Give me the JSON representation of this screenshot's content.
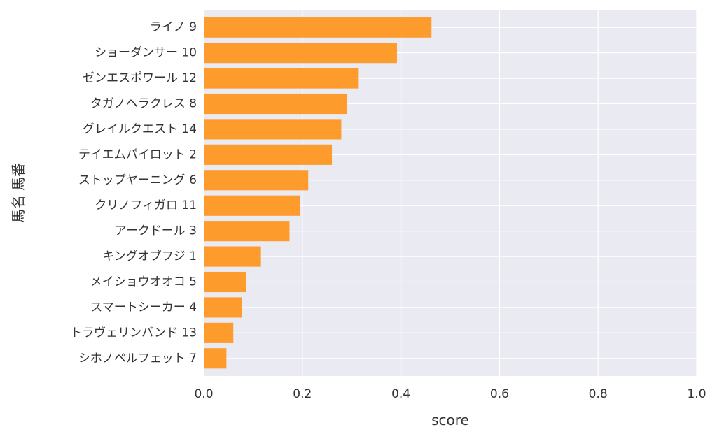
{
  "chart_data": {
    "type": "bar",
    "orientation": "horizontal",
    "categories": [
      "ライノ 9",
      "ショーダンサー 10",
      "ゼンエスポワール 12",
      "タガノヘラクレス 8",
      "グレイルクエスト 14",
      "テイエムパイロット 2",
      "ストップヤーニング 6",
      "クリノフィガロ 11",
      "アークドール 3",
      "キングオブフジ 1",
      "メイショウオオコ 5",
      "スマートシーカー 4",
      "トラヴェリンバンド 13",
      "シホノペルフェット 7"
    ],
    "values": [
      0.462,
      0.392,
      0.313,
      0.291,
      0.279,
      0.26,
      0.212,
      0.196,
      0.174,
      0.116,
      0.086,
      0.078,
      0.06,
      0.046
    ],
    "xlabel": "score",
    "ylabel": "馬名 馬番",
    "xlim": [
      0,
      1.0
    ],
    "xticks": [
      "0.0",
      "0.2",
      "0.4",
      "0.6",
      "0.8",
      "1.0"
    ],
    "grid": true,
    "colors": {
      "bar": "#ff9317",
      "background": "#eaeaf2",
      "grid": "#ffffff"
    }
  }
}
